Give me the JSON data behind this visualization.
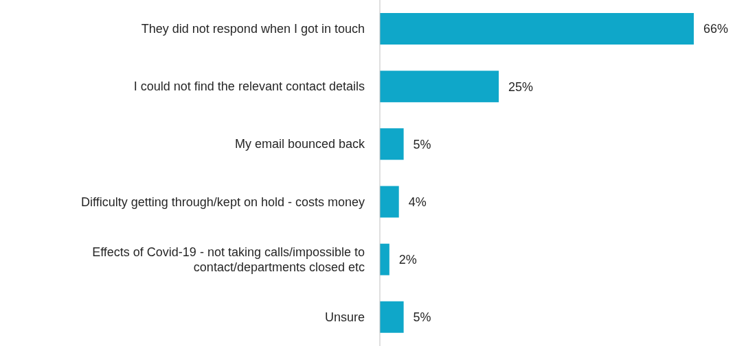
{
  "chart_data": {
    "type": "bar",
    "orientation": "horizontal",
    "categories": [
      "They did not respond when I got in touch",
      "I could not find the relevant contact details",
      "My email bounced back",
      "Difficulty getting through/kept on hold - costs money",
      "Effects of Covid-19 - not taking calls/impossible to contact/departments closed etc",
      "Unsure"
    ],
    "values": [
      66,
      25,
      5,
      4,
      2,
      5
    ],
    "value_labels": [
      "66%",
      "25%",
      "5%",
      "4%",
      "2%",
      "5%"
    ],
    "color": "#0fa7c9",
    "tick_labels": "y",
    "grid": false,
    "legend": false
  }
}
